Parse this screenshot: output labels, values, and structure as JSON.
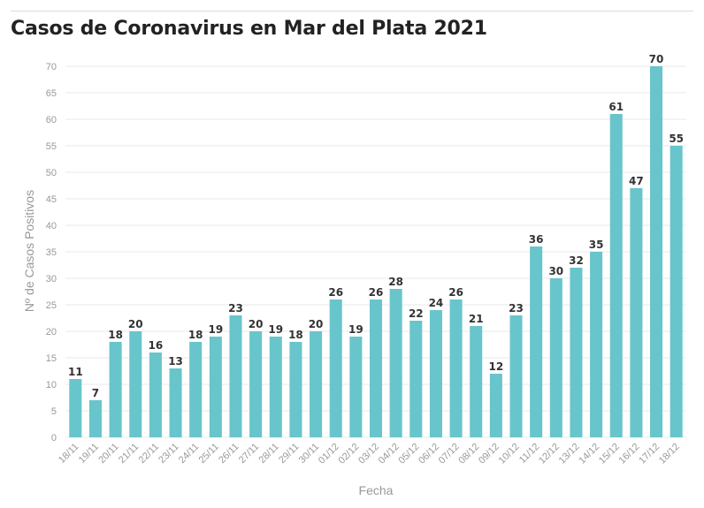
{
  "chart_data": {
    "type": "bar",
    "title": "Casos de Coronavirus en Mar del Plata 2021",
    "xlabel": "Fecha",
    "ylabel": "Nº de Casos Positivos",
    "categories": [
      "18/11",
      "19/11",
      "20/11",
      "21/11",
      "22/11",
      "23/11",
      "24/11",
      "25/11",
      "26/11",
      "27/11",
      "28/11",
      "29/11",
      "30/11",
      "01/12",
      "02/12",
      "03/12",
      "04/12",
      "05/12",
      "06/12",
      "07/12",
      "08/12",
      "09/12",
      "10/12",
      "11/12",
      "12/12",
      "13/12",
      "14/12",
      "15/12",
      "16/12",
      "17/12",
      "18/12"
    ],
    "values": [
      11,
      7,
      18,
      20,
      16,
      13,
      18,
      19,
      23,
      20,
      19,
      18,
      20,
      26,
      19,
      26,
      28,
      22,
      24,
      26,
      21,
      12,
      23,
      36,
      30,
      32,
      35,
      61,
      47,
      70,
      55
    ],
    "ylim": [
      0,
      70
    ],
    "yticks": [
      0,
      5,
      10,
      15,
      20,
      25,
      30,
      35,
      40,
      45,
      50,
      55,
      60,
      65,
      70
    ],
    "grid": true,
    "bar_color": "#68c5cb"
  }
}
